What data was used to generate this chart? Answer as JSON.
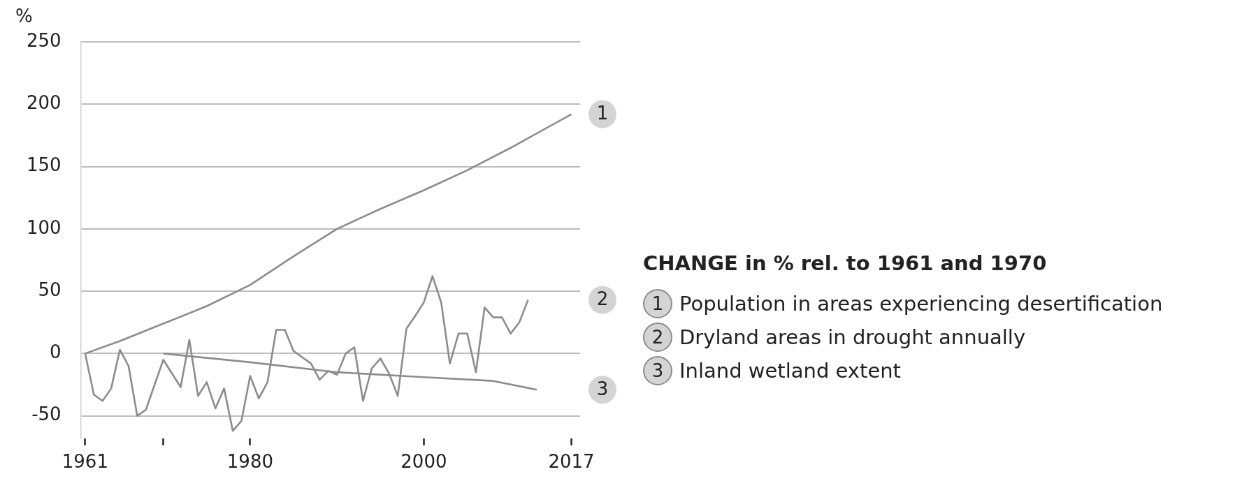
{
  "chart_data": {
    "type": "line",
    "ylabel": "%",
    "legend_title": "CHANGE in % rel. to 1961 and 1970",
    "legend": "right",
    "grid": "y",
    "line_style": "solid",
    "xlim": [
      1960.5,
      2018
    ],
    "xticks": [
      1961,
      {
        "value": 1970,
        "label": null
      },
      1980,
      2000,
      2017
    ],
    "ylim": [
      -68,
      250
    ],
    "yticks": [
      -50,
      0,
      50,
      100,
      150,
      200,
      250
    ],
    "series": [
      {
        "name": "Population in areas experiencing desertification",
        "color": "#8c8c8c",
        "x": [
          1961,
          1965,
          1970,
          1975,
          1980,
          1985,
          1990,
          1995,
          2000,
          2005,
          2010,
          2017
        ],
        "values": [
          0,
          10,
          24,
          38,
          55,
          78,
          100,
          116,
          131,
          147,
          165,
          192
        ]
      },
      {
        "name": "Dryland areas in drought annually",
        "color": "#8c8c8c",
        "x": [
          1961,
          1962,
          1963,
          1964,
          1965,
          1966,
          1967,
          1968,
          1969,
          1970,
          1971,
          1972,
          1973,
          1974,
          1975,
          1976,
          1977,
          1978,
          1979,
          1980,
          1981,
          1982,
          1983,
          1984,
          1985,
          1986,
          1987,
          1988,
          1989,
          1990,
          1991,
          1992,
          1993,
          1994,
          1995,
          1996,
          1997,
          1998,
          1999,
          2000,
          2001,
          2002,
          2003,
          2004,
          2005,
          2006,
          2007,
          2008,
          2009,
          2010,
          2011,
          2012
        ],
        "values": [
          0,
          -33,
          -38,
          -28,
          3,
          -10,
          -50,
          -45,
          -25,
          -5,
          -16,
          -27,
          11,
          -34,
          -23,
          -44,
          -28,
          -62,
          -54,
          -18,
          -36,
          -23,
          19,
          19,
          2,
          -3,
          -8,
          -21,
          -14,
          -17,
          0,
          5,
          -38,
          -12,
          -4,
          -16,
          -34,
          20,
          30,
          41,
          62,
          41,
          -8,
          16,
          16,
          -15,
          37,
          29,
          29,
          16,
          25,
          43
        ]
      },
      {
        "name": "Inland wetland extent",
        "color": "#8c8c8c",
        "x": [
          1970,
          1980,
          1990,
          2000,
          2008,
          2013
        ],
        "values": [
          0,
          -7,
          -15,
          -19,
          -22,
          -29
        ]
      }
    ],
    "annotations": [
      "1",
      "2",
      "3"
    ]
  }
}
